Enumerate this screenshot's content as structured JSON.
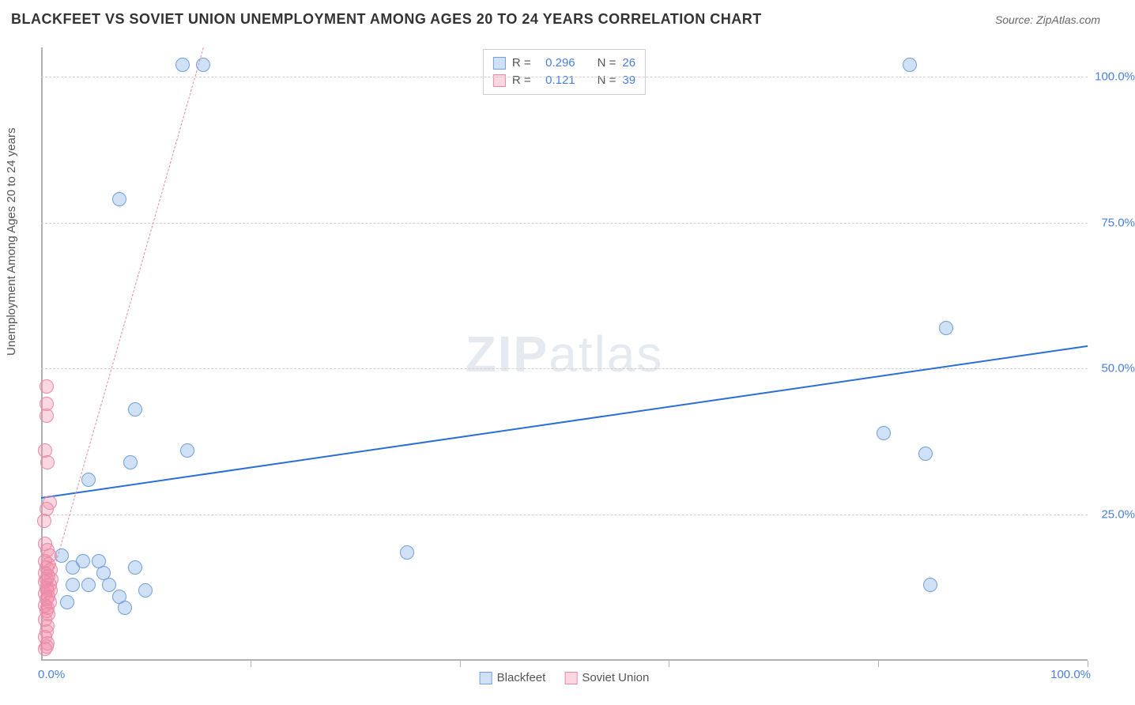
{
  "title": "BLACKFEET VS SOVIET UNION UNEMPLOYMENT AMONG AGES 20 TO 24 YEARS CORRELATION CHART",
  "source": "Source: ZipAtlas.com",
  "ylabel": "Unemployment Among Ages 20 to 24 years",
  "watermark_zip": "ZIP",
  "watermark_atlas": "atlas",
  "chart": {
    "type": "scatter",
    "xlim": [
      0,
      100
    ],
    "ylim": [
      0,
      105
    ],
    "grid_color": "#d0d0d0",
    "axis_color": "#b0b0b0",
    "background_color": "#ffffff",
    "ytick_labels": [
      "25.0%",
      "50.0%",
      "75.0%",
      "100.0%"
    ],
    "ytick_values": [
      25,
      50,
      75,
      100
    ],
    "xtick_values": [
      20,
      40,
      60,
      80,
      100
    ],
    "x_label_min": "0.0%",
    "x_label_max": "100.0%",
    "marker_radius": 9
  },
  "series": [
    {
      "name": "Blackfeet",
      "fill": "rgba(120,170,230,0.35)",
      "stroke": "#6fa0d8",
      "trend": {
        "x1": 0,
        "y1": 28,
        "x2": 100,
        "y2": 54,
        "color": "#2a6fd6",
        "width": 2.5,
        "dash": "none"
      },
      "points": [
        [
          7.5,
          79
        ],
        [
          13.5,
          102
        ],
        [
          15.5,
          102
        ],
        [
          83,
          102
        ],
        [
          86.5,
          57
        ],
        [
          80.5,
          39
        ],
        [
          84.5,
          35.5
        ],
        [
          85,
          13
        ],
        [
          35,
          18.5
        ],
        [
          14,
          36
        ],
        [
          9,
          43
        ],
        [
          4.5,
          31
        ],
        [
          8.5,
          34
        ],
        [
          2,
          18
        ],
        [
          3,
          16
        ],
        [
          4,
          17
        ],
        [
          5.5,
          17
        ],
        [
          6,
          15
        ],
        [
          3,
          13
        ],
        [
          4.5,
          13
        ],
        [
          6.5,
          13
        ],
        [
          9,
          16
        ],
        [
          7.5,
          11
        ],
        [
          10,
          12
        ],
        [
          8,
          9
        ],
        [
          2.5,
          10
        ]
      ]
    },
    {
      "name": "Soviet Union",
      "fill": "rgba(240,140,170,0.35)",
      "stroke": "#e88aa8",
      "trend": {
        "x1": 0,
        "y1": 8,
        "x2": 15.5,
        "y2": 105,
        "color": "#e88aa8",
        "width": 1.5,
        "dash": "4,4"
      },
      "points": [
        [
          0.5,
          47
        ],
        [
          0.5,
          44
        ],
        [
          0.5,
          42
        ],
        [
          0.4,
          36
        ],
        [
          0.6,
          34
        ],
        [
          0.8,
          27
        ],
        [
          0.5,
          26
        ],
        [
          0.3,
          24
        ],
        [
          0.4,
          20
        ],
        [
          0.6,
          19
        ],
        [
          0.8,
          18
        ],
        [
          0.4,
          17
        ],
        [
          0.7,
          16.5
        ],
        [
          0.5,
          16
        ],
        [
          0.9,
          15.5
        ],
        [
          0.4,
          15
        ],
        [
          0.7,
          14.5
        ],
        [
          0.5,
          14
        ],
        [
          1.0,
          14
        ],
        [
          0.4,
          13.5
        ],
        [
          0.8,
          13
        ],
        [
          0.5,
          12.5
        ],
        [
          0.6,
          12
        ],
        [
          0.9,
          12
        ],
        [
          0.4,
          11.5
        ],
        [
          0.7,
          11
        ],
        [
          0.5,
          10.5
        ],
        [
          0.8,
          10
        ],
        [
          0.4,
          9.5
        ],
        [
          0.6,
          9
        ],
        [
          0.5,
          8.5
        ],
        [
          0.7,
          8
        ],
        [
          0.4,
          7
        ],
        [
          0.6,
          6
        ],
        [
          0.5,
          5
        ],
        [
          0.4,
          4
        ],
        [
          0.6,
          3
        ],
        [
          0.5,
          2.5
        ],
        [
          0.4,
          2
        ]
      ]
    }
  ],
  "legend_top": [
    {
      "swatch_fill": "rgba(120,170,230,0.35)",
      "swatch_stroke": "#6fa0d8",
      "r_label": "R =",
      "r_value": "0.296",
      "n_label": "N =",
      "n_value": "26"
    },
    {
      "swatch_fill": "rgba(240,140,170,0.35)",
      "swatch_stroke": "#e88aa8",
      "r_label": "R =",
      "r_value": "0.121",
      "n_label": "N =",
      "n_value": "39"
    }
  ],
  "legend_bottom": [
    {
      "swatch_fill": "rgba(120,170,230,0.35)",
      "swatch_stroke": "#6fa0d8",
      "label": "Blackfeet"
    },
    {
      "swatch_fill": "rgba(240,140,170,0.35)",
      "swatch_stroke": "#e88aa8",
      "label": "Soviet Union"
    }
  ]
}
